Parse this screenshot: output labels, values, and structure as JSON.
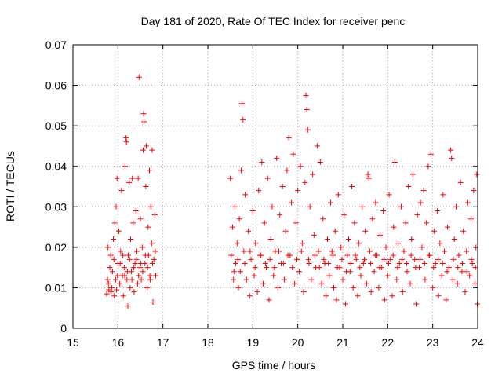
{
  "chart_data": {
    "type": "scatter",
    "title": "Day 181 of 2020, Rate Of TEC Index for receiver penc",
    "xlabel": "GPS time / hours",
    "ylabel": "ROTI / TECUs",
    "xlim": [
      15,
      24
    ],
    "ylim": [
      0,
      0.07
    ],
    "grid": true,
    "marker": "+",
    "color": "#ff0000",
    "x_ticks": [
      "15",
      "16",
      "17",
      "18",
      "19",
      "20",
      "21",
      "22",
      "23",
      "24"
    ],
    "y_ticks": [
      "0",
      "0.01",
      "0.02",
      "0.03",
      "0.04",
      "0.05",
      "0.06",
      "0.07"
    ],
    "series": [
      {
        "name": "ROTI",
        "points": [
          [
            15.75,
            0.0085
          ],
          [
            15.77,
            0.012
          ],
          [
            15.78,
            0.02
          ],
          [
            15.8,
            0.0095
          ],
          [
            15.82,
            0.015
          ],
          [
            15.84,
            0.018
          ],
          [
            15.86,
            0.01
          ],
          [
            15.88,
            0.014
          ],
          [
            15.9,
            0.022
          ],
          [
            15.92,
            0.008
          ],
          [
            15.93,
            0.026
          ],
          [
            15.95,
            0.012
          ],
          [
            15.96,
            0.03
          ],
          [
            15.97,
            0.0095
          ],
          [
            15.98,
            0.037
          ],
          [
            16.0,
            0.016
          ],
          [
            16.02,
            0.024
          ],
          [
            16.04,
            0.011
          ],
          [
            16.06,
            0.019
          ],
          [
            16.08,
            0.034
          ],
          [
            16.1,
            0.013
          ],
          [
            16.12,
            0.008
          ],
          [
            16.14,
            0.015
          ],
          [
            16.16,
            0.04
          ],
          [
            16.18,
            0.047
          ],
          [
            16.19,
            0.046
          ],
          [
            16.2,
            0.012
          ],
          [
            16.22,
            0.0055
          ],
          [
            16.23,
            0.018
          ],
          [
            16.25,
            0.036
          ],
          [
            16.27,
            0.01
          ],
          [
            16.28,
            0.022
          ],
          [
            16.3,
            0.014
          ],
          [
            16.32,
            0.037
          ],
          [
            16.34,
            0.026
          ],
          [
            16.36,
            0.009
          ],
          [
            16.38,
            0.016
          ],
          [
            16.4,
            0.029
          ],
          [
            16.42,
            0.019
          ],
          [
            16.44,
            0.011
          ],
          [
            16.45,
            0.037
          ],
          [
            16.47,
            0.062
          ],
          [
            16.49,
            0.015
          ],
          [
            16.5,
            0.027
          ],
          [
            16.52,
            0.012
          ],
          [
            16.54,
            0.02
          ],
          [
            16.56,
            0.044
          ],
          [
            16.57,
            0.053
          ],
          [
            16.58,
            0.051
          ],
          [
            16.6,
            0.016
          ],
          [
            16.62,
            0.035
          ],
          [
            16.63,
            0.045
          ],
          [
            16.65,
            0.01
          ],
          [
            16.67,
            0.025
          ],
          [
            16.68,
            0.018
          ],
          [
            16.7,
            0.039
          ],
          [
            16.72,
            0.012
          ],
          [
            16.73,
            0.03
          ],
          [
            16.75,
            0.021
          ],
          [
            16.76,
            0.044
          ],
          [
            16.78,
            0.0065
          ],
          [
            16.8,
            0.017
          ],
          [
            16.82,
            0.028
          ],
          [
            16.84,
            0.013
          ],
          [
            15.79,
            0.011
          ],
          [
            15.85,
            0.009
          ],
          [
            15.91,
            0.017
          ],
          [
            15.99,
            0.013
          ],
          [
            16.05,
            0.016
          ],
          [
            16.11,
            0.018
          ],
          [
            16.15,
            0.013
          ],
          [
            16.21,
            0.014
          ],
          [
            16.26,
            0.017
          ],
          [
            16.31,
            0.012
          ],
          [
            16.35,
            0.015
          ],
          [
            16.41,
            0.017
          ],
          [
            16.46,
            0.013
          ],
          [
            16.51,
            0.016
          ],
          [
            16.55,
            0.014
          ],
          [
            16.61,
            0.018
          ],
          [
            16.66,
            0.015
          ],
          [
            16.71,
            0.013
          ],
          [
            16.77,
            0.016
          ],
          [
            16.83,
            0.019
          ],
          [
            18.5,
            0.037
          ],
          [
            18.52,
            0.018
          ],
          [
            18.55,
            0.025
          ],
          [
            18.57,
            0.012
          ],
          [
            18.6,
            0.03
          ],
          [
            18.62,
            0.016
          ],
          [
            18.65,
            0.021
          ],
          [
            18.68,
            0.01
          ],
          [
            18.7,
            0.027
          ],
          [
            18.72,
            0.014
          ],
          [
            18.74,
            0.039
          ],
          [
            18.76,
            0.0555
          ],
          [
            18.78,
            0.0515
          ],
          [
            18.8,
            0.019
          ],
          [
            18.83,
            0.033
          ],
          [
            18.86,
            0.012
          ],
          [
            18.9,
            0.024
          ],
          [
            18.93,
            0.008
          ],
          [
            18.96,
            0.017
          ],
          [
            19.0,
            0.029
          ],
          [
            19.03,
            0.013
          ],
          [
            19.06,
            0.021
          ],
          [
            19.1,
            0.009
          ],
          [
            19.13,
            0.034
          ],
          [
            19.16,
            0.018
          ],
          [
            19.2,
            0.041
          ],
          [
            19.23,
            0.011
          ],
          [
            19.26,
            0.026
          ],
          [
            19.3,
            0.015
          ],
          [
            19.33,
            0.037
          ],
          [
            19.36,
            0.007
          ],
          [
            19.4,
            0.022
          ],
          [
            19.43,
            0.03
          ],
          [
            19.46,
            0.013
          ],
          [
            19.5,
            0.019
          ],
          [
            19.53,
            0.042
          ],
          [
            19.56,
            0.01
          ],
          [
            19.6,
            0.028
          ],
          [
            19.63,
            0.016
          ],
          [
            19.66,
            0.035
          ],
          [
            19.7,
            0.012
          ],
          [
            19.73,
            0.024
          ],
          [
            19.76,
            0.039
          ],
          [
            19.8,
            0.047
          ],
          [
            19.83,
            0.018
          ],
          [
            19.86,
            0.031
          ],
          [
            19.9,
            0.043
          ],
          [
            19.93,
            0.011
          ],
          [
            19.96,
            0.026
          ],
          [
            20.0,
            0.034
          ],
          [
            20.03,
            0.014
          ],
          [
            20.06,
            0.04
          ],
          [
            20.1,
            0.021
          ],
          [
            20.13,
            0.009
          ],
          [
            20.16,
            0.036
          ],
          [
            20.18,
            0.0575
          ],
          [
            20.2,
            0.054
          ],
          [
            20.22,
            0.049
          ],
          [
            20.24,
            0.017
          ],
          [
            20.27,
            0.03
          ],
          [
            20.3,
            0.012
          ],
          [
            20.33,
            0.038
          ],
          [
            20.36,
            0.023
          ],
          [
            20.4,
            0.015
          ],
          [
            20.43,
            0.045
          ],
          [
            20.46,
            0.019
          ],
          [
            20.5,
            0.041
          ],
          [
            20.53,
            0.011
          ],
          [
            20.56,
            0.027
          ],
          [
            20.6,
            0.016
          ],
          [
            20.63,
            0.008
          ],
          [
            20.66,
            0.022
          ],
          [
            20.7,
            0.013
          ],
          [
            20.73,
            0.031
          ],
          [
            20.76,
            0.019
          ],
          [
            20.8,
            0.01
          ],
          [
            20.83,
            0.024
          ],
          [
            20.86,
            0.007
          ],
          [
            20.9,
            0.033
          ],
          [
            20.93,
            0.015
          ],
          [
            20.96,
            0.02
          ],
          [
            21.0,
            0.012
          ],
          [
            21.03,
            0.028
          ],
          [
            21.06,
            0.006
          ],
          [
            21.1,
            0.018
          ],
          [
            21.13,
            0.022
          ],
          [
            21.16,
            0.014
          ],
          [
            21.2,
            0.035
          ],
          [
            21.23,
            0.01
          ],
          [
            21.26,
            0.026
          ],
          [
            21.3,
            0.017
          ],
          [
            21.33,
            0.008
          ],
          [
            21.36,
            0.021
          ],
          [
            21.4,
            0.013
          ],
          [
            21.43,
            0.03
          ],
          [
            21.46,
            0.016
          ],
          [
            21.5,
            0.024
          ],
          [
            21.53,
            0.011
          ],
          [
            21.56,
            0.038
          ],
          [
            21.58,
            0.037
          ],
          [
            21.6,
            0.019
          ],
          [
            21.63,
            0.009
          ],
          [
            21.66,
            0.027
          ],
          [
            21.7,
            0.014
          ],
          [
            21.73,
            0.031
          ],
          [
            21.76,
            0.018
          ],
          [
            21.8,
            0.01
          ],
          [
            21.83,
            0.023
          ],
          [
            21.86,
            0.015
          ],
          [
            21.9,
            0.029
          ],
          [
            21.93,
            0.007
          ],
          [
            21.96,
            0.02
          ],
          [
            22.0,
            0.013
          ],
          [
            22.03,
            0.033
          ],
          [
            22.06,
            0.017
          ],
          [
            22.1,
            0.008
          ],
          [
            22.13,
            0.025
          ],
          [
            22.16,
            0.041
          ],
          [
            22.2,
            0.012
          ],
          [
            22.23,
            0.021
          ],
          [
            22.26,
            0.016
          ],
          [
            22.3,
            0.03
          ],
          [
            22.33,
            0.009
          ],
          [
            22.36,
            0.019
          ],
          [
            22.4,
            0.026
          ],
          [
            22.43,
            0.014
          ],
          [
            22.46,
            0.035
          ],
          [
            22.5,
            0.011
          ],
          [
            22.53,
            0.022
          ],
          [
            22.56,
            0.038
          ],
          [
            22.6,
            0.017
          ],
          [
            22.63,
            0.006
          ],
          [
            22.66,
            0.028
          ],
          [
            22.7,
            0.015
          ],
          [
            22.73,
            0.031
          ],
          [
            22.76,
            0.02
          ],
          [
            22.8,
            0.034
          ],
          [
            22.83,
            0.012
          ],
          [
            22.86,
            0.026
          ],
          [
            22.9,
            0.04
          ],
          [
            22.93,
            0.018
          ],
          [
            22.96,
            0.043
          ],
          [
            23.0,
            0.01
          ],
          [
            23.03,
            0.024
          ],
          [
            23.06,
            0.016
          ],
          [
            23.1,
            0.029
          ],
          [
            23.13,
            0.008
          ],
          [
            23.16,
            0.021
          ],
          [
            23.2,
            0.013
          ],
          [
            23.23,
            0.033
          ],
          [
            23.26,
            0.019
          ],
          [
            23.3,
            0.007
          ],
          [
            23.33,
            0.025
          ],
          [
            23.36,
            0.015
          ],
          [
            23.4,
            0.044
          ],
          [
            23.42,
            0.042
          ],
          [
            23.45,
            0.012
          ],
          [
            23.48,
            0.022
          ],
          [
            23.52,
            0.03
          ],
          [
            23.55,
            0.011
          ],
          [
            23.58,
            0.018
          ],
          [
            23.62,
            0.036
          ],
          [
            23.65,
            0.014
          ],
          [
            23.68,
            0.024
          ],
          [
            23.72,
            0.009
          ],
          [
            23.75,
            0.019
          ],
          [
            23.78,
            0.031
          ],
          [
            23.82,
            0.013
          ],
          [
            23.85,
            0.027
          ],
          [
            23.88,
            0.016
          ],
          [
            23.91,
            0.034
          ],
          [
            23.94,
            0.011
          ],
          [
            23.96,
            0.02
          ],
          [
            23.98,
            0.038
          ],
          [
            23.99,
            0.006
          ],
          [
            18.58,
            0.014
          ],
          [
            18.67,
            0.017
          ],
          [
            18.82,
            0.016
          ],
          [
            18.94,
            0.019
          ],
          [
            19.05,
            0.015
          ],
          [
            19.18,
            0.018
          ],
          [
            19.28,
            0.016
          ],
          [
            19.38,
            0.017
          ],
          [
            19.48,
            0.015
          ],
          [
            19.58,
            0.019
          ],
          [
            19.68,
            0.016
          ],
          [
            19.78,
            0.018
          ],
          [
            19.88,
            0.015
          ],
          [
            19.98,
            0.017
          ],
          [
            20.08,
            0.019
          ],
          [
            20.25,
            0.016
          ],
          [
            20.38,
            0.018
          ],
          [
            20.48,
            0.015
          ],
          [
            20.58,
            0.017
          ],
          [
            20.68,
            0.016
          ],
          [
            20.78,
            0.018
          ],
          [
            20.88,
            0.015
          ],
          [
            20.98,
            0.017
          ],
          [
            21.08,
            0.014
          ],
          [
            21.18,
            0.016
          ],
          [
            21.28,
            0.018
          ],
          [
            21.38,
            0.015
          ],
          [
            21.48,
            0.017
          ],
          [
            21.62,
            0.016
          ],
          [
            21.72,
            0.018
          ],
          [
            21.82,
            0.015
          ],
          [
            21.92,
            0.017
          ],
          [
            22.02,
            0.016
          ],
          [
            22.12,
            0.018
          ],
          [
            22.22,
            0.015
          ],
          [
            22.32,
            0.017
          ],
          [
            22.42,
            0.016
          ],
          [
            22.52,
            0.018
          ],
          [
            22.62,
            0.015
          ],
          [
            22.72,
            0.017
          ],
          [
            22.82,
            0.016
          ],
          [
            22.92,
            0.018
          ],
          [
            23.02,
            0.015
          ],
          [
            23.12,
            0.017
          ],
          [
            23.22,
            0.016
          ],
          [
            23.32,
            0.014
          ],
          [
            23.46,
            0.017
          ],
          [
            23.56,
            0.015
          ],
          [
            23.66,
            0.016
          ],
          [
            23.76,
            0.014
          ],
          [
            23.86,
            0.017
          ],
          [
            23.95,
            0.015
          ]
        ]
      }
    ]
  }
}
